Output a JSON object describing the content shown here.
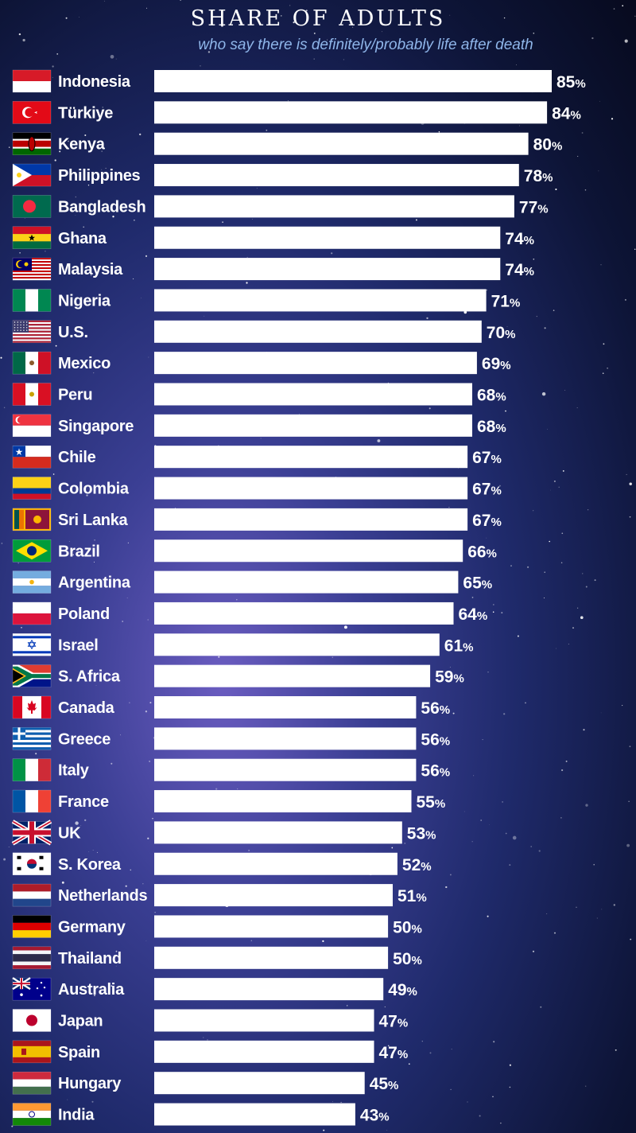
{
  "title": "SHARE OF ADULTS",
  "subtitle": "who say there is definitely/probably life after death",
  "colors": {
    "bar": "#ffffff",
    "text": "#ffffff",
    "subtitle": "#8fb6ea"
  },
  "chart_data": {
    "type": "bar",
    "orientation": "horizontal",
    "title": "SHARE OF ADULTS",
    "subtitle": "who say there is definitely/probably life after death",
    "unit": "%",
    "categories": [
      "Indonesia",
      "Türkiye",
      "Kenya",
      "Philippines",
      "Bangladesh",
      "Ghana",
      "Malaysia",
      "Nigeria",
      "U.S.",
      "Mexico",
      "Peru",
      "Singapore",
      "Chile",
      "Colombia",
      "Sri Lanka",
      "Brazil",
      "Argentina",
      "Poland",
      "Israel",
      "S. Africa",
      "Canada",
      "Greece",
      "Italy",
      "France",
      "UK",
      "S. Korea",
      "Netherlands",
      "Germany",
      "Thailand",
      "Australia",
      "Japan",
      "Spain",
      "Hungary",
      "India"
    ],
    "values": [
      85,
      84,
      80,
      78,
      77,
      74,
      74,
      71,
      70,
      69,
      68,
      68,
      67,
      67,
      67,
      66,
      65,
      64,
      61,
      59,
      56,
      56,
      56,
      55,
      53,
      52,
      51,
      50,
      50,
      49,
      47,
      47,
      45,
      43
    ],
    "flag_icons": [
      "flag-indonesia-icon",
      "flag-turkiye-icon",
      "flag-kenya-icon",
      "flag-philippines-icon",
      "flag-bangladesh-icon",
      "flag-ghana-icon",
      "flag-malaysia-icon",
      "flag-nigeria-icon",
      "flag-us-icon",
      "flag-mexico-icon",
      "flag-peru-icon",
      "flag-singapore-icon",
      "flag-chile-icon",
      "flag-colombia-icon",
      "flag-sri-lanka-icon",
      "flag-brazil-icon",
      "flag-argentina-icon",
      "flag-poland-icon",
      "flag-israel-icon",
      "flag-south-africa-icon",
      "flag-canada-icon",
      "flag-greece-icon",
      "flag-italy-icon",
      "flag-france-icon",
      "flag-uk-icon",
      "flag-south-korea-icon",
      "flag-netherlands-icon",
      "flag-germany-icon",
      "flag-thailand-icon",
      "flag-australia-icon",
      "flag-japan-icon",
      "flag-spain-icon",
      "flag-hungary-icon",
      "flag-india-icon"
    ],
    "xlim": [
      0,
      85
    ],
    "grid": false,
    "legend": "none"
  }
}
